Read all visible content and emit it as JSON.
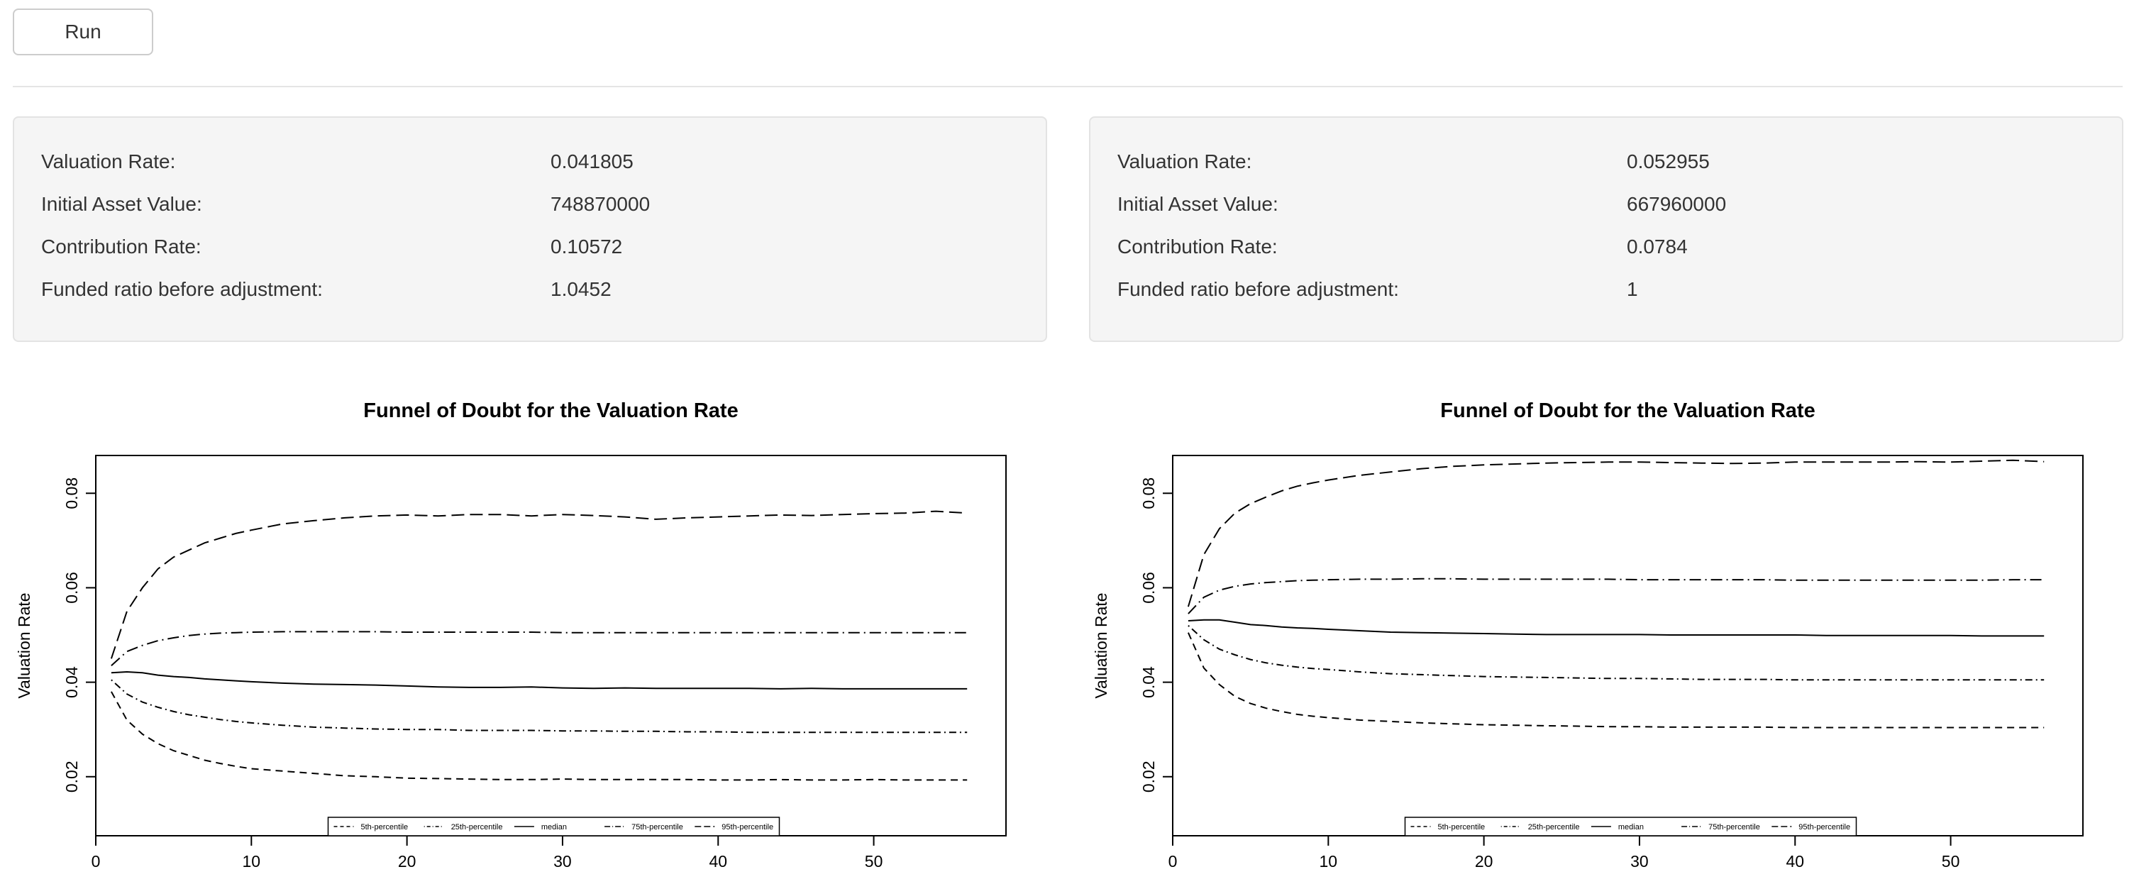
{
  "controls": {
    "run_label": "Run"
  },
  "panels": [
    {
      "rows": [
        {
          "label": "Valuation Rate:",
          "value": "0.041805"
        },
        {
          "label": "Initial Asset Value:",
          "value": "748870000"
        },
        {
          "label": "Contribution Rate:",
          "value": "0.10572"
        },
        {
          "label": "Funded ratio before adjustment:",
          "value": "1.0452"
        }
      ]
    },
    {
      "rows": [
        {
          "label": "Valuation Rate:",
          "value": "0.052955"
        },
        {
          "label": "Initial Asset Value:",
          "value": "667960000"
        },
        {
          "label": "Contribution Rate:",
          "value": "0.0784"
        },
        {
          "label": "Funded ratio before adjustment:",
          "value": "1"
        }
      ]
    }
  ],
  "chart_data": [
    {
      "type": "line",
      "title": "Funnel of Doubt for the Valuation Rate",
      "xlabel": "",
      "ylabel": "Valuation Rate",
      "xlim": [
        0,
        58.5
      ],
      "ylim": [
        0.0075,
        0.088
      ],
      "xticks": [
        0,
        10,
        20,
        30,
        40,
        50
      ],
      "yticks": [
        0.02,
        0.04,
        0.06,
        0.08
      ],
      "ytick_labels": [
        "0.02",
        "0.04",
        "0.06",
        "0.08"
      ],
      "legend_position": "bottom-center",
      "x": [
        1,
        2,
        3,
        4,
        5,
        6,
        7,
        8,
        9,
        10,
        12,
        14,
        16,
        18,
        20,
        22,
        24,
        26,
        28,
        30,
        32,
        34,
        36,
        38,
        40,
        42,
        44,
        46,
        48,
        50,
        52,
        54,
        56
      ],
      "series": [
        {
          "name": "5th-percentile",
          "dash": "dashed",
          "values": [
            0.038,
            0.032,
            0.029,
            0.027,
            0.0255,
            0.0245,
            0.0235,
            0.0228,
            0.0222,
            0.0217,
            0.0212,
            0.0207,
            0.0202,
            0.02,
            0.0197,
            0.0196,
            0.0195,
            0.0194,
            0.0194,
            0.0195,
            0.0194,
            0.0194,
            0.0194,
            0.0194,
            0.0193,
            0.0193,
            0.0194,
            0.0193,
            0.0193,
            0.0194,
            0.0193,
            0.0193,
            0.0193
          ]
        },
        {
          "name": "25th-percentile",
          "dash": "dotdash",
          "values": [
            0.0405,
            0.0375,
            0.0358,
            0.0347,
            0.0338,
            0.0331,
            0.0326,
            0.0321,
            0.0317,
            0.0314,
            0.0309,
            0.0305,
            0.0303,
            0.0301,
            0.03,
            0.03,
            0.0298,
            0.0298,
            0.0298,
            0.0297,
            0.0297,
            0.0296,
            0.0296,
            0.0295,
            0.0295,
            0.0294,
            0.0294,
            0.0294,
            0.0294,
            0.0294,
            0.0294,
            0.0294,
            0.0294
          ]
        },
        {
          "name": "median",
          "dash": "solid",
          "values": [
            0.042,
            0.0422,
            0.042,
            0.0415,
            0.0412,
            0.041,
            0.0407,
            0.0405,
            0.0403,
            0.0401,
            0.0398,
            0.0396,
            0.0395,
            0.0394,
            0.0392,
            0.039,
            0.0389,
            0.0389,
            0.039,
            0.0388,
            0.0387,
            0.0388,
            0.0387,
            0.0387,
            0.0387,
            0.0387,
            0.0386,
            0.0387,
            0.0386,
            0.0386,
            0.0386,
            0.0386,
            0.0386
          ]
        },
        {
          "name": "75th-percentile",
          "dash": "longdash-dot",
          "values": [
            0.0435,
            0.0465,
            0.0478,
            0.0488,
            0.0494,
            0.0499,
            0.0502,
            0.0504,
            0.0505,
            0.0506,
            0.0507,
            0.0507,
            0.0507,
            0.0507,
            0.0506,
            0.0506,
            0.0506,
            0.0506,
            0.0506,
            0.0505,
            0.0505,
            0.0505,
            0.0505,
            0.0505,
            0.0505,
            0.0505,
            0.0505,
            0.0505,
            0.0505,
            0.0505,
            0.0505,
            0.0505,
            0.0505
          ]
        },
        {
          "name": "95th-percentile",
          "dash": "longdash",
          "values": [
            0.045,
            0.055,
            0.06,
            0.064,
            0.0665,
            0.068,
            0.0695,
            0.0705,
            0.0715,
            0.0722,
            0.0735,
            0.0742,
            0.0748,
            0.0752,
            0.0754,
            0.0752,
            0.0755,
            0.0755,
            0.0752,
            0.0755,
            0.0753,
            0.075,
            0.0745,
            0.0748,
            0.075,
            0.0752,
            0.0754,
            0.0753,
            0.0755,
            0.0757,
            0.0758,
            0.0762,
            0.0758
          ]
        }
      ]
    },
    {
      "type": "line",
      "title": "Funnel of Doubt for the Valuation Rate",
      "xlabel": "",
      "ylabel": "Valuation Rate",
      "xlim": [
        0,
        58.5
      ],
      "ylim": [
        0.0075,
        0.088
      ],
      "xticks": [
        0,
        10,
        20,
        30,
        40,
        50
      ],
      "yticks": [
        0.02,
        0.04,
        0.06,
        0.08
      ],
      "ytick_labels": [
        "0.02",
        "0.04",
        "0.06",
        "0.08"
      ],
      "legend_position": "bottom-center",
      "x": [
        1,
        2,
        3,
        4,
        5,
        6,
        7,
        8,
        9,
        10,
        12,
        14,
        16,
        18,
        20,
        22,
        24,
        26,
        28,
        30,
        32,
        34,
        36,
        38,
        40,
        42,
        44,
        46,
        48,
        50,
        52,
        54,
        56
      ],
      "series": [
        {
          "name": "5th-percentile",
          "dash": "dashed",
          "values": [
            0.0505,
            0.043,
            0.0395,
            0.037,
            0.0355,
            0.0345,
            0.0338,
            0.0332,
            0.0328,
            0.0325,
            0.032,
            0.0317,
            0.0314,
            0.0312,
            0.031,
            0.0309,
            0.0308,
            0.0307,
            0.0306,
            0.0306,
            0.0305,
            0.0305,
            0.0305,
            0.0305,
            0.0304,
            0.0304,
            0.0304,
            0.0304,
            0.0304,
            0.0304,
            0.0304,
            0.0304,
            0.0304
          ]
        },
        {
          "name": "25th-percentile",
          "dash": "dotdash",
          "values": [
            0.052,
            0.049,
            0.047,
            0.0458,
            0.0448,
            0.0441,
            0.0436,
            0.0432,
            0.0429,
            0.0427,
            0.0422,
            0.0418,
            0.0416,
            0.0414,
            0.0412,
            0.0411,
            0.041,
            0.0409,
            0.0408,
            0.0408,
            0.0407,
            0.0406,
            0.0406,
            0.0406,
            0.0405,
            0.0405,
            0.0405,
            0.0405,
            0.0405,
            0.0405,
            0.0405,
            0.0405,
            0.0405
          ]
        },
        {
          "name": "median",
          "dash": "solid",
          "values": [
            0.053,
            0.0532,
            0.0532,
            0.0527,
            0.0522,
            0.052,
            0.0517,
            0.0515,
            0.0514,
            0.0512,
            0.0509,
            0.0506,
            0.0505,
            0.0504,
            0.0503,
            0.0502,
            0.0501,
            0.0501,
            0.0501,
            0.0501,
            0.05,
            0.05,
            0.05,
            0.05,
            0.05,
            0.0499,
            0.0499,
            0.0499,
            0.0499,
            0.0499,
            0.0498,
            0.0498,
            0.0498
          ]
        },
        {
          "name": "75th-percentile",
          "dash": "longdash-dot",
          "values": [
            0.0545,
            0.058,
            0.0595,
            0.0603,
            0.0608,
            0.0611,
            0.0613,
            0.0615,
            0.0616,
            0.0617,
            0.0618,
            0.0618,
            0.0619,
            0.0619,
            0.0618,
            0.0618,
            0.0618,
            0.0618,
            0.0618,
            0.0617,
            0.0617,
            0.0617,
            0.0617,
            0.0617,
            0.0616,
            0.0616,
            0.0616,
            0.0616,
            0.0616,
            0.0616,
            0.0616,
            0.0617,
            0.0617
          ]
        },
        {
          "name": "95th-percentile",
          "dash": "longdash",
          "values": [
            0.056,
            0.067,
            0.0725,
            0.0758,
            0.0778,
            0.0792,
            0.0805,
            0.0815,
            0.0822,
            0.0828,
            0.0838,
            0.0845,
            0.0852,
            0.0857,
            0.086,
            0.0862,
            0.0864,
            0.0865,
            0.0866,
            0.0866,
            0.0865,
            0.0864,
            0.0863,
            0.0864,
            0.0866,
            0.0866,
            0.0866,
            0.0866,
            0.0867,
            0.0866,
            0.0868,
            0.087,
            0.0867
          ]
        }
      ]
    }
  ]
}
